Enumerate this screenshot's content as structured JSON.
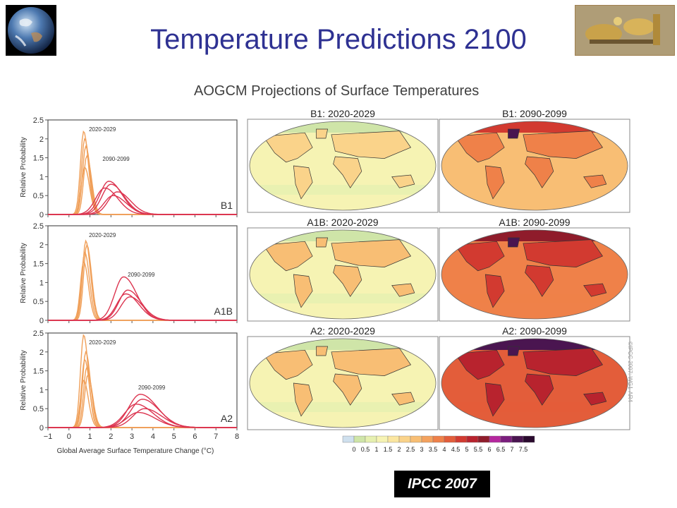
{
  "slide": {
    "title": "Temperature Predictions 2100",
    "credit": "IPCC 2007",
    "side_note": "©IPCC 2007: WG1-AR4"
  },
  "figure": {
    "title": "AOGCM Projections of Surface Temperatures",
    "xlabel": "Global Average Surface Temperature Change (°C)",
    "ylabel": "Relative Probability",
    "map_labels": [
      [
        "B1: 2020-2029",
        "B1: 2090-2099"
      ],
      [
        "A1B: 2020-2029",
        "A1B: 2090-2099"
      ],
      [
        "A2: 2020-2029",
        "A2: 2090-2099"
      ]
    ],
    "colorbar": {
      "ticks": [
        "0",
        "0.5",
        "1",
        "1.5",
        "2",
        "2.5",
        "3",
        "3.5",
        "4",
        "4.5",
        "5",
        "5.5",
        "6",
        "6.5",
        "7",
        "7.5"
      ],
      "colors": [
        "#cfe0ee",
        "#cfe5a8",
        "#e6f0b0",
        "#f6f3b3",
        "#fbe6a0",
        "#fad38a",
        "#f8be74",
        "#f4a25e",
        "#ef8149",
        "#e35d3a",
        "#d23a30",
        "#b8232e",
        "#8f1c2b",
        "#b5279e",
        "#7b1e7e",
        "#4a1550",
        "#2a0a2e"
      ]
    }
  },
  "chart_data": {
    "type": "line",
    "xlabel": "Global Average Surface Temperature Change (°C)",
    "ylabel": "Relative Probability",
    "xlim": [
      -1,
      8
    ],
    "ylim": [
      0,
      2.5
    ],
    "xticks": [
      "−1",
      "0",
      "1",
      "2",
      "3",
      "4",
      "5",
      "6",
      "7",
      "8"
    ],
    "yticks": [
      "0",
      "0.5",
      "1",
      "1.5",
      "2",
      "2.5"
    ],
    "panels": [
      {
        "scenario": "B1",
        "period_labels": [
          "2020-2029",
          "2090-2099"
        ],
        "early": [
          {
            "peak_x": 0.7,
            "peak_y": 2.2
          },
          {
            "peak_x": 0.75,
            "peak_y": 2.0
          },
          {
            "peak_x": 0.8,
            "peak_y": 1.8
          },
          {
            "peak_x": 0.85,
            "peak_y": 1.55
          },
          {
            "peak_x": 0.75,
            "peak_y": 1.25
          }
        ],
        "late": [
          {
            "peak_x": 1.9,
            "peak_y": 0.88
          },
          {
            "peak_x": 2.0,
            "peak_y": 0.8
          },
          {
            "peak_x": 1.7,
            "peak_y": 0.7
          },
          {
            "peak_x": 2.3,
            "peak_y": 0.6
          },
          {
            "peak_x": 2.1,
            "peak_y": 0.5
          }
        ]
      },
      {
        "scenario": "A1B",
        "period_labels": [
          "2020-2029",
          "2090-2099"
        ],
        "early": [
          {
            "peak_x": 0.8,
            "peak_y": 2.1
          },
          {
            "peak_x": 0.85,
            "peak_y": 2.0
          },
          {
            "peak_x": 0.75,
            "peak_y": 1.8
          },
          {
            "peak_x": 0.7,
            "peak_y": 1.55
          }
        ],
        "late": [
          {
            "peak_x": 2.6,
            "peak_y": 1.15
          },
          {
            "peak_x": 2.8,
            "peak_y": 0.8
          },
          {
            "peak_x": 2.7,
            "peak_y": 0.7
          },
          {
            "peak_x": 2.9,
            "peak_y": 0.62
          }
        ]
      },
      {
        "scenario": "A2",
        "period_labels": [
          "2020-2029",
          "2090-2099"
        ],
        "early": [
          {
            "peak_x": 0.7,
            "peak_y": 2.45
          },
          {
            "peak_x": 0.8,
            "peak_y": 2.0
          },
          {
            "peak_x": 0.75,
            "peak_y": 1.8
          },
          {
            "peak_x": 0.85,
            "peak_y": 1.6
          },
          {
            "peak_x": 0.9,
            "peak_y": 1.4
          },
          {
            "peak_x": 0.7,
            "peak_y": 1.25
          }
        ],
        "late": [
          {
            "peak_x": 3.4,
            "peak_y": 0.88
          },
          {
            "peak_x": 3.5,
            "peak_y": 0.75
          },
          {
            "peak_x": 3.2,
            "peak_y": 0.62
          },
          {
            "peak_x": 3.6,
            "peak_y": 0.5
          },
          {
            "peak_x": 3.3,
            "peak_y": 0.4
          }
        ]
      }
    ]
  }
}
